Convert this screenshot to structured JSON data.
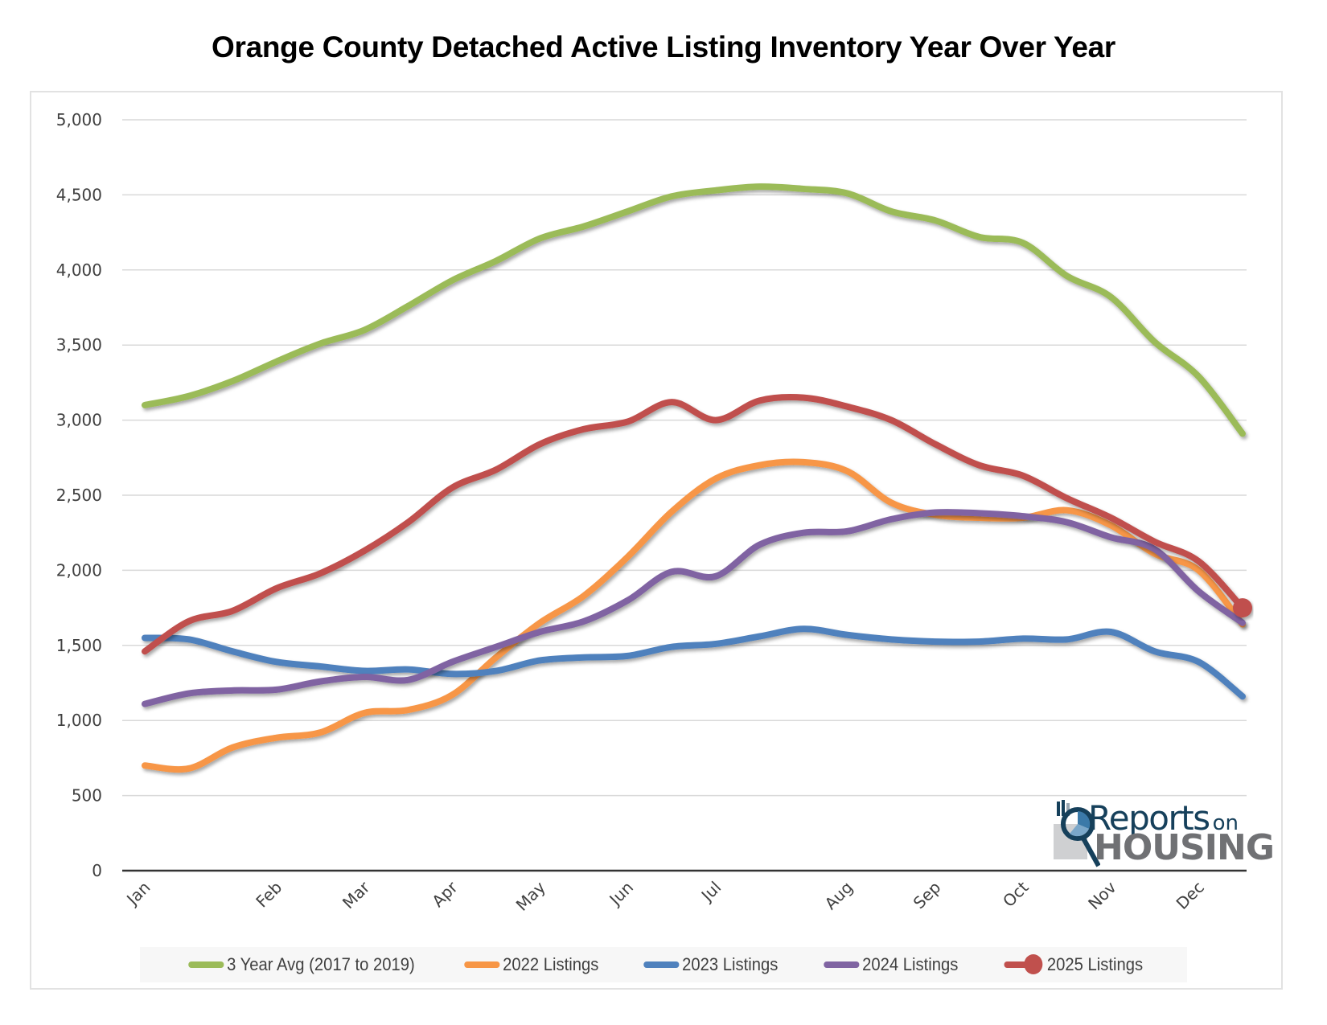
{
  "chart_data": {
    "type": "line",
    "title": "Orange County Detached Active Listing Inventory Year Over Year",
    "xlabel": "",
    "ylabel": "",
    "ylim": [
      0,
      5000
    ],
    "yticks": [
      "0",
      "500",
      "1,000",
      "1,500",
      "2,000",
      "2,500",
      "3,000",
      "3,500",
      "4,000",
      "4,500",
      "5,000"
    ],
    "ytick_values": [
      0,
      500,
      1000,
      1500,
      2000,
      2500,
      3000,
      3500,
      4000,
      4500,
      5000
    ],
    "grid": true,
    "x_unit": "week of year (0 = first week of January)",
    "xlim": [
      0,
      52
    ],
    "xticks": [
      {
        "label": "Jan",
        "week": 0
      },
      {
        "label": "Feb",
        "week": 6
      },
      {
        "label": "Mar",
        "week": 10
      },
      {
        "label": "Apr",
        "week": 14
      },
      {
        "label": "May",
        "week": 18
      },
      {
        "label": "Jun",
        "week": 22
      },
      {
        "label": "Jul",
        "week": 26
      },
      {
        "label": "Aug",
        "week": 32
      },
      {
        "label": "Sep",
        "week": 36
      },
      {
        "label": "Oct",
        "week": 40
      },
      {
        "label": "Nov",
        "week": 44
      },
      {
        "label": "Dec",
        "week": 48
      }
    ],
    "legend_position": "bottom",
    "series": [
      {
        "name": "3 Year Avg (2017 to 2019)",
        "color": "#9bbb59",
        "points": [
          [
            0,
            3100
          ],
          [
            2,
            3160
          ],
          [
            4,
            3260
          ],
          [
            6,
            3390
          ],
          [
            8,
            3510
          ],
          [
            10,
            3600
          ],
          [
            12,
            3760
          ],
          [
            14,
            3930
          ],
          [
            16,
            4060
          ],
          [
            18,
            4210
          ],
          [
            20,
            4290
          ],
          [
            22,
            4390
          ],
          [
            24,
            4490
          ],
          [
            26,
            4530
          ],
          [
            28,
            4555
          ],
          [
            30,
            4540
          ],
          [
            32,
            4510
          ],
          [
            34,
            4390
          ],
          [
            36,
            4330
          ],
          [
            38,
            4220
          ],
          [
            40,
            4180
          ],
          [
            42,
            3960
          ],
          [
            44,
            3820
          ],
          [
            46,
            3520
          ],
          [
            48,
            3290
          ],
          [
            50,
            2910
          ]
        ]
      },
      {
        "name": "2022 Listings",
        "color": "#f79646",
        "points": [
          [
            0,
            700
          ],
          [
            2,
            680
          ],
          [
            4,
            820
          ],
          [
            6,
            885
          ],
          [
            8,
            920
          ],
          [
            10,
            1050
          ],
          [
            12,
            1070
          ],
          [
            14,
            1170
          ],
          [
            16,
            1420
          ],
          [
            18,
            1650
          ],
          [
            20,
            1830
          ],
          [
            22,
            2090
          ],
          [
            24,
            2390
          ],
          [
            26,
            2610
          ],
          [
            28,
            2700
          ],
          [
            30,
            2720
          ],
          [
            32,
            2660
          ],
          [
            34,
            2450
          ],
          [
            36,
            2370
          ],
          [
            38,
            2350
          ],
          [
            40,
            2350
          ],
          [
            42,
            2400
          ],
          [
            44,
            2300
          ],
          [
            46,
            2110
          ],
          [
            48,
            2000
          ],
          [
            50,
            1640
          ]
        ]
      },
      {
        "name": "2023 Listings",
        "color": "#4f81bd",
        "points": [
          [
            0,
            1550
          ],
          [
            2,
            1540
          ],
          [
            4,
            1460
          ],
          [
            6,
            1390
          ],
          [
            8,
            1360
          ],
          [
            10,
            1330
          ],
          [
            12,
            1340
          ],
          [
            14,
            1310
          ],
          [
            16,
            1330
          ],
          [
            18,
            1400
          ],
          [
            20,
            1420
          ],
          [
            22,
            1430
          ],
          [
            24,
            1490
          ],
          [
            26,
            1510
          ],
          [
            28,
            1560
          ],
          [
            30,
            1610
          ],
          [
            32,
            1570
          ],
          [
            34,
            1540
          ],
          [
            36,
            1525
          ],
          [
            38,
            1525
          ],
          [
            40,
            1545
          ],
          [
            42,
            1540
          ],
          [
            44,
            1590
          ],
          [
            46,
            1460
          ],
          [
            48,
            1390
          ],
          [
            50,
            1160
          ]
        ]
      },
      {
        "name": "2024 Listings",
        "color": "#8064a2",
        "points": [
          [
            0,
            1110
          ],
          [
            2,
            1180
          ],
          [
            4,
            1200
          ],
          [
            6,
            1205
          ],
          [
            8,
            1260
          ],
          [
            10,
            1290
          ],
          [
            12,
            1270
          ],
          [
            14,
            1390
          ],
          [
            16,
            1490
          ],
          [
            18,
            1590
          ],
          [
            20,
            1660
          ],
          [
            22,
            1800
          ],
          [
            24,
            1990
          ],
          [
            26,
            1960
          ],
          [
            28,
            2170
          ],
          [
            30,
            2250
          ],
          [
            32,
            2260
          ],
          [
            34,
            2340
          ],
          [
            36,
            2385
          ],
          [
            38,
            2380
          ],
          [
            40,
            2360
          ],
          [
            42,
            2320
          ],
          [
            44,
            2220
          ],
          [
            46,
            2140
          ],
          [
            48,
            1860
          ],
          [
            50,
            1650
          ]
        ]
      },
      {
        "name": "2025 Listings",
        "color": "#c0504d",
        "marker_last": true,
        "points": [
          [
            0,
            1460
          ],
          [
            2,
            1660
          ],
          [
            4,
            1730
          ],
          [
            6,
            1880
          ],
          [
            8,
            1980
          ],
          [
            10,
            2130
          ],
          [
            12,
            2320
          ],
          [
            14,
            2550
          ],
          [
            16,
            2670
          ],
          [
            18,
            2840
          ],
          [
            20,
            2940
          ],
          [
            22,
            2990
          ],
          [
            24,
            3120
          ],
          [
            26,
            3000
          ],
          [
            28,
            3130
          ],
          [
            30,
            3150
          ],
          [
            32,
            3090
          ],
          [
            34,
            3000
          ],
          [
            36,
            2840
          ],
          [
            38,
            2700
          ],
          [
            40,
            2630
          ],
          [
            42,
            2480
          ],
          [
            44,
            2350
          ],
          [
            46,
            2190
          ],
          [
            48,
            2060
          ],
          [
            50,
            1750
          ]
        ]
      }
    ]
  },
  "logo": {
    "line1": "Reports",
    "line1_suffix": "on",
    "line2": "HOUSING"
  }
}
